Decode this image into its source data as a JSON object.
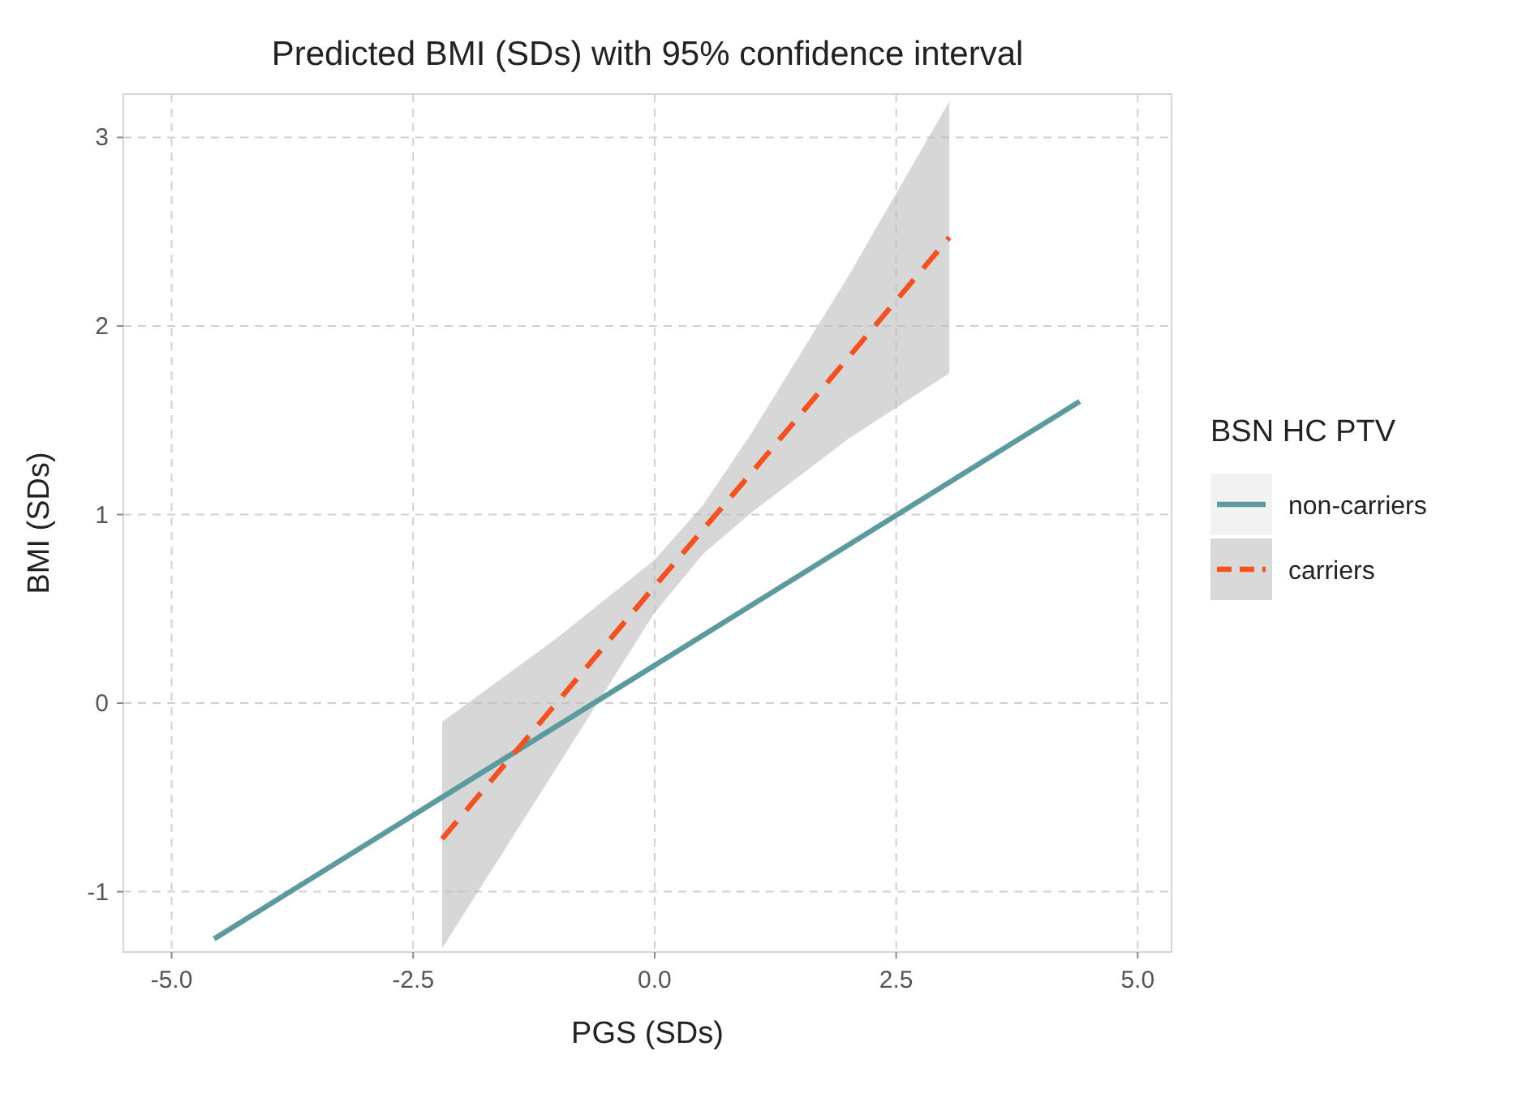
{
  "chart_data": {
    "type": "line",
    "title": "Predicted BMI (SDs) with 95% confidence interval",
    "xlabel": "PGS (SDs)",
    "ylabel": "BMI (SDs)",
    "legend_title": "BSN HC PTV",
    "legend": "right",
    "grid": true,
    "marker": "none",
    "xlim": [
      -5.5,
      5.35
    ],
    "xticks": [
      {
        "value": -5,
        "label": "-5.0"
      },
      -2.5,
      {
        "value": 0,
        "label": "0.0"
      },
      2.5,
      {
        "value": 5,
        "label": "5.0"
      }
    ],
    "ylim": [
      -1.32,
      3.23
    ],
    "yticks": [
      -1,
      0,
      1,
      2,
      3
    ],
    "series": [
      {
        "name": "non-carriers",
        "color": "#5b9a9f",
        "line_style": "solid",
        "x": [
          -4.56,
          4.4
        ],
        "values": [
          -1.25,
          1.6
        ]
      },
      {
        "name": "carriers",
        "color": "#f4511e",
        "line_style": "dashed",
        "x": [
          -2.2,
          -1,
          0,
          0.5,
          1,
          2,
          3.05
        ],
        "values": [
          -0.72,
          0.01,
          0.62,
          0.92,
          1.22,
          1.83,
          2.47
        ],
        "lower": [
          -1.3,
          -0.33,
          0.48,
          0.79,
          1.01,
          1.4,
          1.75
        ],
        "upper": [
          -0.1,
          0.35,
          0.76,
          1.05,
          1.43,
          2.26,
          3.19
        ]
      }
    ]
  }
}
